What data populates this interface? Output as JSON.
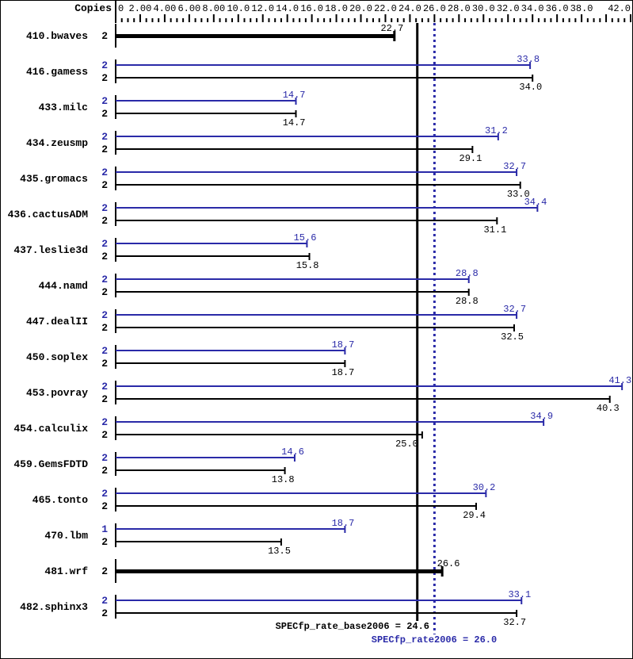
{
  "chart_data": {
    "type": "bar",
    "orientation": "horizontal",
    "copies_header": "Copies",
    "axis": {
      "x_min": 0,
      "x_max": 42,
      "tick_minor_step": 0.5,
      "tick_major_step": 2.0,
      "tick_labels": [
        {
          "value": 0,
          "text": "0"
        },
        {
          "value": 2,
          "text": "2.00"
        },
        {
          "value": 4,
          "text": "4.00"
        },
        {
          "value": 6,
          "text": "6.00"
        },
        {
          "value": 8,
          "text": "8.00"
        },
        {
          "value": 10,
          "text": "10.0"
        },
        {
          "value": 12,
          "text": "12.0"
        },
        {
          "value": 14,
          "text": "14.0"
        },
        {
          "value": 16,
          "text": "16.0"
        },
        {
          "value": 18,
          "text": "18.0"
        },
        {
          "value": 20,
          "text": "20.0"
        },
        {
          "value": 22,
          "text": "22.0"
        },
        {
          "value": 24,
          "text": "24.0"
        },
        {
          "value": 26,
          "text": "26.0"
        },
        {
          "value": 28,
          "text": "28.0"
        },
        {
          "value": 30,
          "text": "30.0"
        },
        {
          "value": 32,
          "text": "32.0"
        },
        {
          "value": 34,
          "text": "34.0"
        },
        {
          "value": 36,
          "text": "36.0"
        },
        {
          "value": 38,
          "text": "38.0"
        },
        {
          "value": 42,
          "text": "42.0"
        }
      ]
    },
    "colors": {
      "peak": "#2a2aa8",
      "base": "#000000"
    },
    "benchmarks": [
      {
        "name": "410.bwaves",
        "bars": [
          {
            "series": "base",
            "copies": "2",
            "value": 22.7,
            "value_text": "22.7",
            "bold": true,
            "label_pos": "above"
          }
        ]
      },
      {
        "name": "416.gamess",
        "bars": [
          {
            "series": "peak",
            "copies": "2",
            "value": 33.8,
            "value_text": "33.8",
            "label_pos": "above"
          },
          {
            "series": "base",
            "copies": "2",
            "value": 34.0,
            "value_text": "34.0",
            "label_pos": "below"
          }
        ]
      },
      {
        "name": "433.milc",
        "bars": [
          {
            "series": "peak",
            "copies": "2",
            "value": 14.7,
            "value_text": "14.7",
            "label_pos": "above"
          },
          {
            "series": "base",
            "copies": "2",
            "value": 14.7,
            "value_text": "14.7",
            "label_pos": "below"
          }
        ]
      },
      {
        "name": "434.zeusmp",
        "bars": [
          {
            "series": "peak",
            "copies": "2",
            "value": 31.2,
            "value_text": "31.2",
            "label_pos": "above"
          },
          {
            "series": "base",
            "copies": "2",
            "value": 29.1,
            "value_text": "29.1",
            "label_pos": "below"
          }
        ]
      },
      {
        "name": "435.gromacs",
        "bars": [
          {
            "series": "peak",
            "copies": "2",
            "value": 32.7,
            "value_text": "32.7",
            "label_pos": "above"
          },
          {
            "series": "base",
            "copies": "2",
            "value": 33.0,
            "value_text": "33.0",
            "label_pos": "below"
          }
        ]
      },
      {
        "name": "436.cactusADM",
        "bars": [
          {
            "series": "peak",
            "copies": "2",
            "value": 34.4,
            "value_text": "34.4",
            "label_pos": "above"
          },
          {
            "series": "base",
            "copies": "2",
            "value": 31.1,
            "value_text": "31.1",
            "label_pos": "below"
          }
        ]
      },
      {
        "name": "437.leslie3d",
        "bars": [
          {
            "series": "peak",
            "copies": "2",
            "value": 15.6,
            "value_text": "15.6",
            "label_pos": "above"
          },
          {
            "series": "base",
            "copies": "2",
            "value": 15.8,
            "value_text": "15.8",
            "label_pos": "below"
          }
        ]
      },
      {
        "name": "444.namd",
        "bars": [
          {
            "series": "peak",
            "copies": "2",
            "value": 28.8,
            "value_text": "28.8",
            "label_pos": "above"
          },
          {
            "series": "base",
            "copies": "2",
            "value": 28.8,
            "value_text": "28.8",
            "label_pos": "below"
          }
        ]
      },
      {
        "name": "447.dealII",
        "bars": [
          {
            "series": "peak",
            "copies": "2",
            "value": 32.7,
            "value_text": "32.7",
            "label_pos": "above"
          },
          {
            "series": "base",
            "copies": "2",
            "value": 32.5,
            "value_text": "32.5",
            "label_pos": "below"
          }
        ]
      },
      {
        "name": "450.soplex",
        "bars": [
          {
            "series": "peak",
            "copies": "2",
            "value": 18.7,
            "value_text": "18.7",
            "label_pos": "above"
          },
          {
            "series": "base",
            "copies": "2",
            "value": 18.7,
            "value_text": "18.7",
            "label_pos": "below"
          }
        ]
      },
      {
        "name": "453.povray",
        "bars": [
          {
            "series": "peak",
            "copies": "2",
            "value": 41.3,
            "value_text": "41.3",
            "label_pos": "above"
          },
          {
            "series": "base",
            "copies": "2",
            "value": 40.3,
            "value_text": "40.3",
            "label_pos": "below"
          }
        ]
      },
      {
        "name": "454.calculix",
        "bars": [
          {
            "series": "peak",
            "copies": "2",
            "value": 34.9,
            "value_text": "34.9",
            "label_pos": "above"
          },
          {
            "series": "base",
            "copies": "2",
            "value": 25.0,
            "value_text": "25.0",
            "label_pos": "below",
            "label_dx": -17
          }
        ]
      },
      {
        "name": "459.GemsFDTD",
        "bars": [
          {
            "series": "peak",
            "copies": "2",
            "value": 14.6,
            "value_text": "14.6",
            "label_pos": "above"
          },
          {
            "series": "base",
            "copies": "2",
            "value": 13.8,
            "value_text": "13.8",
            "label_pos": "below"
          }
        ]
      },
      {
        "name": "465.tonto",
        "bars": [
          {
            "series": "peak",
            "copies": "2",
            "value": 30.2,
            "value_text": "30.2",
            "label_pos": "above"
          },
          {
            "series": "base",
            "copies": "2",
            "value": 29.4,
            "value_text": "29.4",
            "label_pos": "below"
          }
        ]
      },
      {
        "name": "470.lbm",
        "bars": [
          {
            "series": "peak",
            "copies": "1",
            "value": 18.7,
            "value_text": "18.7",
            "label_pos": "above"
          },
          {
            "series": "base",
            "copies": "2",
            "value": 13.5,
            "value_text": "13.5",
            "label_pos": "below"
          }
        ]
      },
      {
        "name": "481.wrf",
        "bars": [
          {
            "series": "base",
            "copies": "2",
            "value": 26.6,
            "value_text": "26.6",
            "bold": true,
            "label_pos": "above",
            "label_anchor": "start"
          }
        ]
      },
      {
        "name": "482.sphinx3",
        "bars": [
          {
            "series": "peak",
            "copies": "2",
            "value": 33.1,
            "value_text": "33.1",
            "label_pos": "above"
          },
          {
            "series": "base",
            "copies": "2",
            "value": 32.7,
            "value_text": "32.7",
            "label_pos": "below"
          }
        ]
      }
    ],
    "reference_lines": [
      {
        "name": "base_mean",
        "label": "SPECfp_rate_base2006 = 24.6",
        "value": 24.6,
        "style": "solid",
        "color": "#000000"
      },
      {
        "name": "peak_mean",
        "label": "SPECfp_rate2006 = 26.0",
        "value": 26.0,
        "style": "dotted",
        "color": "#2a2aa8"
      }
    ]
  }
}
